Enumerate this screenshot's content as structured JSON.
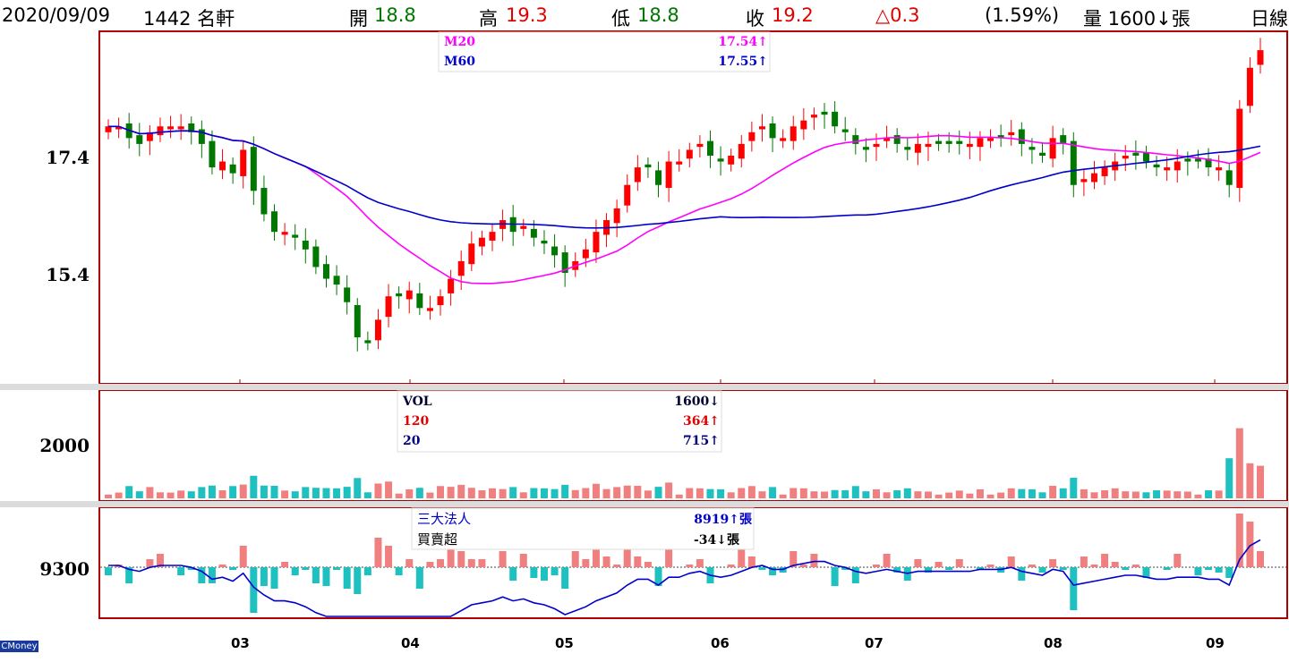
{
  "header": {
    "date": "2020/09/09",
    "stock": "1442 名軒",
    "open_label": "開",
    "open_value": "18.8",
    "high_label": "高",
    "high_value": "19.3",
    "low_label": "低",
    "low_value": "18.8",
    "close_label": "收",
    "close_value": "19.2",
    "change": "△0.3",
    "change_pct": "(1.59%)",
    "volume": "量 1600↓張",
    "period": "日線"
  },
  "watermark": "CMoney",
  "colors": {
    "up": "#ff0000",
    "up_fill": "#f08080",
    "down": "#007700",
    "teal": "#1ec0c0",
    "ma20": "#ff00ff",
    "ma60": "#0000cc",
    "frame": "#aa0000"
  },
  "price_panel": {
    "legend": [
      {
        "name": "M20",
        "value": "17.54↑",
        "color": "#ff00ff"
      },
      {
        "name": "M60",
        "value": "17.55↑",
        "color": "#0000cc"
      }
    ],
    "y_ticks": [
      "17.4",
      "15.4"
    ]
  },
  "volume_panel": {
    "legend": [
      {
        "name": "VOL",
        "value": "1600↓",
        "color": "#000033"
      },
      {
        "name": "120",
        "value": "364↑",
        "color": "#e00000"
      },
      {
        "name": "20",
        "value": "715↑",
        "color": "#000080"
      }
    ],
    "y_tick": "2000"
  },
  "inst_panel": {
    "legend": [
      {
        "name": "三大法人",
        "value": "8919↑張",
        "color": "#0000cc"
      },
      {
        "name": "買賣超",
        "value": "-34↓張",
        "color": "#000000"
      }
    ],
    "y_tick": "9300"
  },
  "months": [
    "03",
    "04",
    "05",
    "06",
    "07",
    "08",
    "09"
  ],
  "chart_data": {
    "type": "candlestick",
    "ohlc_ranges": {
      "price_axis_ticks": [
        17.4,
        15.4
      ],
      "approx_close": [
        17.9,
        17.9,
        17.7,
        17.6,
        17.8,
        17.9,
        17.9,
        17.9,
        17.8,
        17.6,
        17.2,
        17.3,
        17.1,
        17.5,
        16.8,
        16.4,
        16.1,
        16.1,
        16.0,
        15.8,
        15.5,
        15.3,
        15.2,
        14.9,
        14.3,
        14.2,
        14.6,
        15.0,
        15.0,
        15.1,
        14.8,
        14.8,
        15.0,
        15.3,
        15.6,
        15.9,
        16.0,
        16.1,
        16.3,
        16.1,
        16.2,
        16.0,
        15.9,
        15.7,
        15.4,
        15.6,
        15.8,
        16.1,
        16.3,
        16.5,
        16.9,
        17.2,
        17.2,
        16.9,
        17.3,
        17.3,
        17.5,
        17.6,
        17.4,
        17.3,
        17.4,
        17.6,
        17.8,
        17.9,
        17.7,
        17.7,
        17.9,
        18.0,
        18.1,
        18.1,
        17.9,
        17.8,
        17.6,
        17.5,
        17.6,
        17.7,
        17.6,
        17.5,
        17.6,
        17.6,
        17.6,
        17.6,
        17.6,
        17.6,
        17.7,
        17.7,
        17.7,
        17.8,
        17.6,
        17.5,
        17.4,
        17.7,
        17.6,
        16.9,
        17.0,
        17.1,
        17.2,
        17.3,
        17.4,
        17.4,
        17.3,
        17.2,
        17.2,
        17.3,
        17.3,
        17.3,
        17.2,
        17.2,
        16.9,
        18.2,
        18.9,
        19.2
      ]
    },
    "volume_ticks": [
      2000
    ],
    "institutional_ticks": [
      9300
    ]
  }
}
